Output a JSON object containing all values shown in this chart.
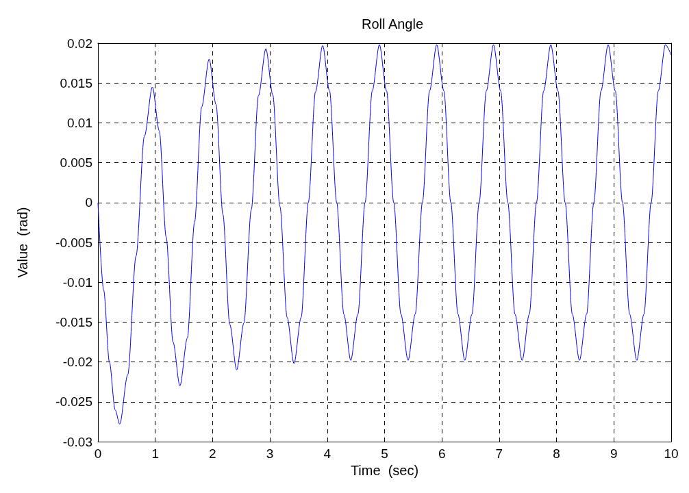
{
  "chart_data": {
    "type": "line",
    "title": "Roll Angle",
    "xlabel": "Time  (sec)",
    "ylabel": "Value  (rad)",
    "grid": true,
    "marker": "none",
    "line_style": "solid",
    "xlim": [
      0,
      10
    ],
    "xticks": [
      0,
      1,
      2,
      3,
      4,
      5,
      6,
      7,
      8,
      9,
      10
    ],
    "ylim": [
      -0.03,
      0.02
    ],
    "yticks": [
      -0.03,
      -0.025,
      -0.02,
      -0.015,
      -0.01,
      -0.005,
      0,
      0.005,
      0.01,
      0.015,
      0.02
    ],
    "series": [
      {
        "color": "#0000ff",
        "x": [
          0,
          0.1,
          0.2,
          0.3,
          0.38,
          0.52,
          0.665,
          0.81,
          0.95,
          1.07,
          1.19,
          1.31,
          1.43,
          1.56,
          1.685,
          1.81,
          1.94,
          2.06,
          2.18,
          2.3,
          2.42,
          2.547,
          2.675,
          2.8,
          2.93,
          3.05,
          3.175,
          3.3,
          3.42,
          3.545,
          3.67,
          3.795,
          3.92,
          4.04,
          4.165,
          4.29,
          4.41,
          4.535,
          4.66,
          4.785,
          4.91,
          5.035,
          5.16,
          5.285,
          5.41,
          5.535,
          5.66,
          5.785,
          5.91,
          6.035,
          6.155,
          6.28,
          6.4,
          6.525,
          6.65,
          6.775,
          6.9,
          7.025,
          7.15,
          7.275,
          7.4,
          7.525,
          7.65,
          7.775,
          7.9,
          8.025,
          8.15,
          8.275,
          8.4,
          8.525,
          8.65,
          8.775,
          8.9,
          9.025,
          9.15,
          9.275,
          9.4,
          9.525,
          9.65,
          9.775,
          9.9,
          10
        ],
        "values": [
          0,
          -0.011,
          -0.02,
          -0.026,
          -0.0278,
          -0.0216,
          -0.0067,
          0.0083,
          0.0145,
          0.009,
          -0.0043,
          -0.0175,
          -0.023,
          -0.017,
          -0.0025,
          0.012,
          0.018,
          0.0123,
          -0.0015,
          -0.0153,
          -0.021,
          -0.0151,
          -0.0009,
          0.0134,
          0.0193,
          0.0135,
          -0.0005,
          -0.0144,
          -0.0202,
          -0.0144,
          0,
          0.0139,
          0.0197,
          0.014,
          0,
          -0.014,
          -0.0198,
          -0.014,
          0,
          0.014,
          0.0198,
          0.014,
          0,
          -0.014,
          -0.0198,
          -0.014,
          0,
          0.014,
          0.0198,
          0.014,
          0,
          -0.014,
          -0.0198,
          -0.014,
          0,
          0.014,
          0.0198,
          0.014,
          0,
          -0.014,
          -0.0198,
          -0.014,
          0,
          0.014,
          0.0198,
          0.014,
          0,
          -0.014,
          -0.0198,
          -0.014,
          0,
          0.014,
          0.0198,
          0.014,
          0,
          -0.014,
          -0.0198,
          -0.014,
          0,
          0.014,
          0.0198,
          0.0185
        ]
      }
    ]
  }
}
